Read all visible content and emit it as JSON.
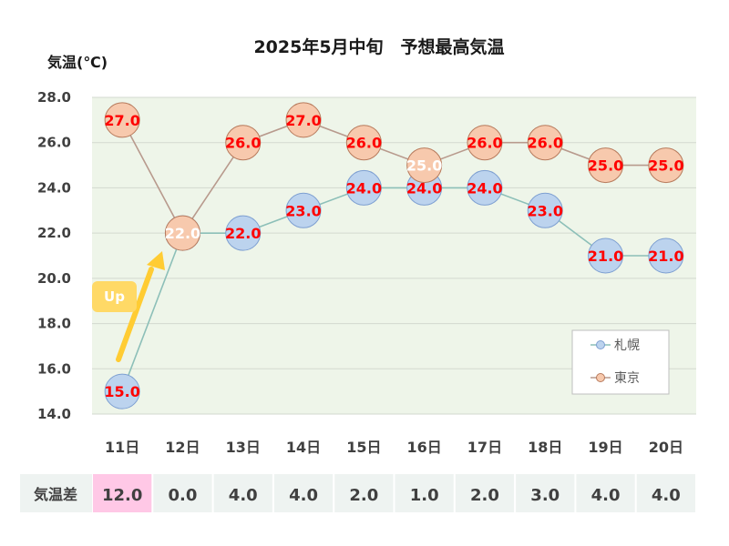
{
  "chart_data": {
    "type": "line",
    "title": "2025年5月中旬　予想最高気温",
    "ylabel": "気温(℃)",
    "ylim": [
      14,
      28
    ],
    "yticks": [
      "14.0",
      "16.0",
      "18.0",
      "20.0",
      "22.0",
      "24.0",
      "26.0",
      "28.0"
    ],
    "grid": true,
    "legend_position": "bottom-right",
    "categories": [
      "11日",
      "12日",
      "13日",
      "14日",
      "15日",
      "16日",
      "17日",
      "18日",
      "19日",
      "20日"
    ],
    "series": [
      {
        "name": "札幌",
        "values": [
          15.0,
          22.0,
          22.0,
          23.0,
          24.0,
          24.0,
          24.0,
          23.0,
          21.0,
          21.0
        ],
        "labels": [
          "15.0",
          "22.0",
          "22.0",
          "23.0",
          "24.0",
          "24.0",
          "24.0",
          "23.0",
          "21.0",
          "21.0"
        ],
        "marker_fill": "#bcd3ee",
        "marker_stroke": "#7d9fd1",
        "line_color": "#8cbfb8"
      },
      {
        "name": "東京",
        "values": [
          27.0,
          22.0,
          26.0,
          27.0,
          26.0,
          25.0,
          26.0,
          26.0,
          25.0,
          25.0
        ],
        "labels": [
          "27.0",
          "22.0",
          "26.0",
          "27.0",
          "26.0",
          "25.0",
          "26.0",
          "26.0",
          "25.0",
          "25.0"
        ],
        "marker_fill": "#f7c9ad",
        "marker_stroke": "#b77a5c",
        "line_color": "#b89a8d"
      }
    ],
    "annotation": {
      "text": "Up",
      "color": "#ffd966",
      "arrow_color": "#ffcc33"
    },
    "diff_row": {
      "header": "気温差",
      "values": [
        "12.0",
        "0.0",
        "4.0",
        "4.0",
        "2.0",
        "1.0",
        "2.0",
        "3.0",
        "4.0",
        "4.0"
      ],
      "highlight_index": 0,
      "highlight_color": "#ffc8e6",
      "cell_color": "#eef3f1"
    },
    "colors": {
      "plot_bg": "#eef5e9",
      "grid": "#d3d9cf",
      "label_red": "#ff0000",
      "label_white": "#ffffff"
    }
  }
}
